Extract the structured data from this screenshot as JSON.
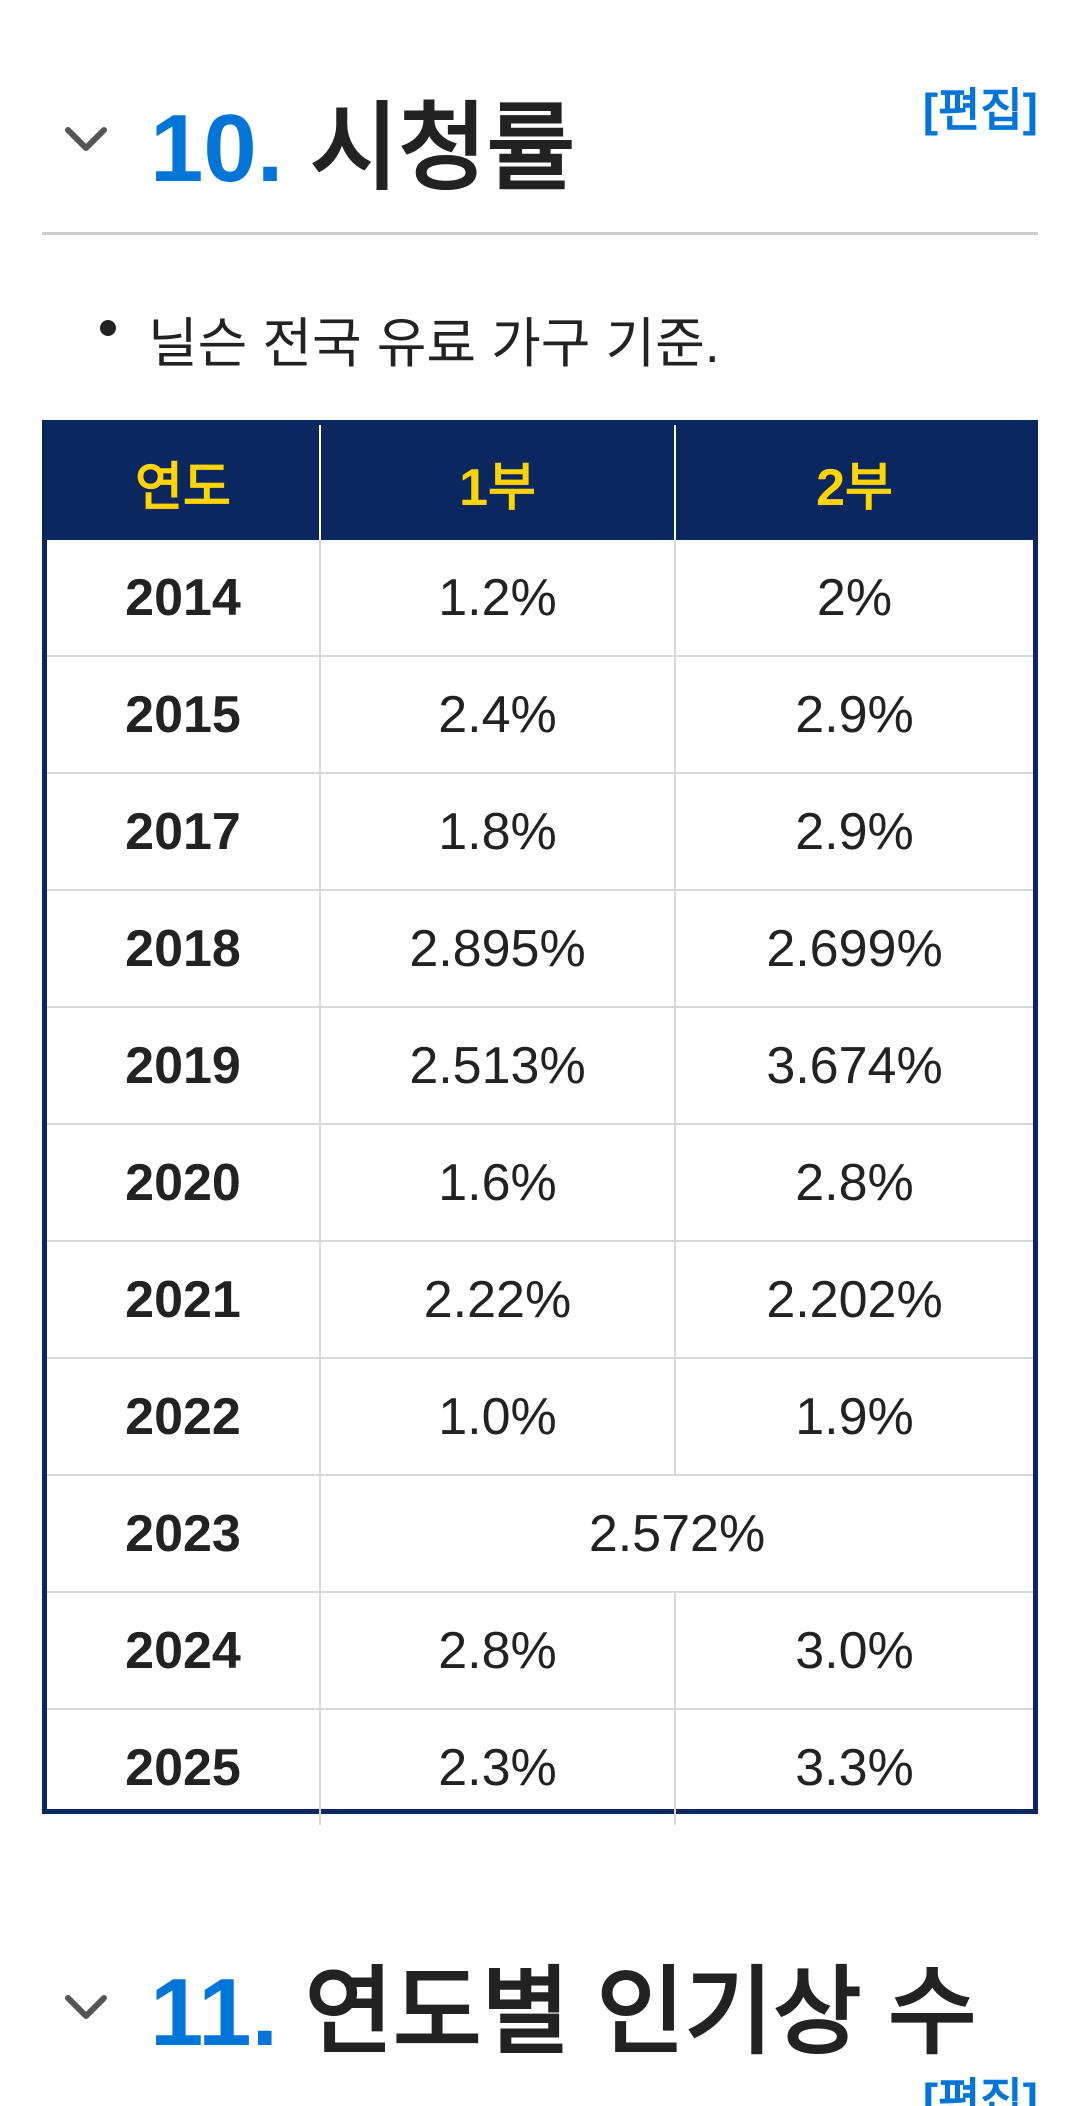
{
  "section10": {
    "number": "10.",
    "title": "시청률",
    "edit": "[편집]",
    "chevron_icon": "chevron-down-icon"
  },
  "note": "닐슨 전국 유료 가구 기준.",
  "table": {
    "header_bg": "#0a285f",
    "header_color": "#ffd400",
    "headers": [
      "연도",
      "1부",
      "2부"
    ],
    "rows": [
      {
        "year": "2014",
        "p1": "1.2%",
        "p2": "2%"
      },
      {
        "year": "2015",
        "p1": "2.4%",
        "p2": "2.9%"
      },
      {
        "year": "2017",
        "p1": "1.8%",
        "p2": "2.9%"
      },
      {
        "year": "2018",
        "p1": "2.895%",
        "p2": "2.699%"
      },
      {
        "year": "2019",
        "p1": "2.513%",
        "p2": "3.674%"
      },
      {
        "year": "2020",
        "p1": "1.6%",
        "p2": "2.8%"
      },
      {
        "year": "2021",
        "p1": "2.22%",
        "p2": "2.202%"
      },
      {
        "year": "2022",
        "p1": "1.0%",
        "p2": "1.9%"
      },
      {
        "year": "2023",
        "merged": "2.572%"
      },
      {
        "year": "2024",
        "p1": "2.8%",
        "p2": "3.0%"
      },
      {
        "year": "2025",
        "p1": "2.3%",
        "p2": "3.3%"
      }
    ]
  },
  "section11": {
    "number": "11.",
    "title": "연도별 인기상 수",
    "edit": "[편집]",
    "chevron_icon": "chevron-down-icon"
  },
  "colors": {
    "accent_blue": "#0275d8",
    "table_navy": "#0a285f",
    "header_yellow": "#ffd400"
  }
}
